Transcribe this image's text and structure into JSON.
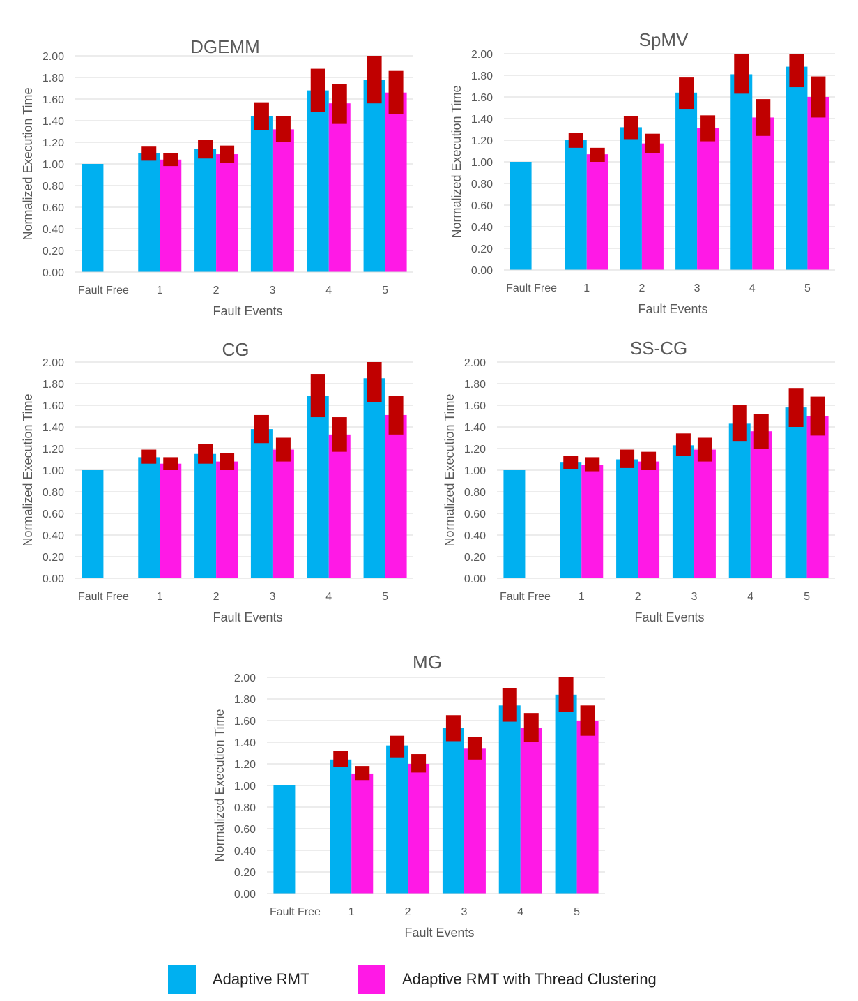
{
  "colors": {
    "adaptive": "#00b0f0",
    "clustering": "#ff19e6",
    "error": "#c00000",
    "grid": "#d9d9d9",
    "text": "#595959"
  },
  "legend": {
    "adaptive_label": "Adaptive RMT",
    "clustering_label": "Adaptive RMT with Thread Clustering"
  },
  "chart_data": [
    {
      "type": "bar",
      "title": "DGEMM",
      "xlabel": "Fault Events",
      "ylabel": "Normalized Execution Time",
      "ylim": [
        0,
        2
      ],
      "yticks": [
        "0.00",
        "0.20",
        "0.40",
        "0.60",
        "0.80",
        "1.00",
        "1.20",
        "1.40",
        "1.60",
        "1.80",
        "2.00"
      ],
      "categories": [
        "Fault Free",
        "1",
        "2",
        "3",
        "4",
        "5"
      ],
      "series": [
        {
          "name": "Adaptive RMT",
          "values": [
            1.0,
            1.1,
            1.14,
            1.44,
            1.68,
            1.78
          ],
          "error_low": [
            null,
            1.03,
            1.05,
            1.31,
            1.48,
            1.56
          ],
          "error_high": [
            null,
            1.16,
            1.22,
            1.57,
            1.88,
            2.0
          ]
        },
        {
          "name": "Adaptive RMT with Thread Clustering",
          "values": [
            null,
            1.04,
            1.09,
            1.32,
            1.56,
            1.66
          ],
          "error_low": [
            null,
            0.98,
            1.01,
            1.2,
            1.37,
            1.46
          ],
          "error_high": [
            null,
            1.1,
            1.17,
            1.44,
            1.74,
            1.86
          ]
        }
      ]
    },
    {
      "type": "bar",
      "title": "SpMV",
      "xlabel": "Fault Events",
      "ylabel": "Normalized Execution Time",
      "ylim": [
        0,
        2
      ],
      "yticks": [
        "0.00",
        "0.20",
        "0.40",
        "0.60",
        "0.80",
        "1.00",
        "1.20",
        "1.40",
        "1.60",
        "1.80",
        "2.00"
      ],
      "categories": [
        "Fault Free",
        "1",
        "2",
        "3",
        "4",
        "5"
      ],
      "series": [
        {
          "name": "Adaptive RMT",
          "values": [
            1.0,
            1.2,
            1.32,
            1.64,
            1.81,
            1.88
          ],
          "error_low": [
            null,
            1.13,
            1.21,
            1.49,
            1.63,
            1.69
          ],
          "error_high": [
            null,
            1.27,
            1.42,
            1.78,
            2.0,
            2.0
          ]
        },
        {
          "name": "Adaptive RMT with Thread Clustering",
          "values": [
            null,
            1.07,
            1.17,
            1.31,
            1.41,
            1.6
          ],
          "error_low": [
            null,
            1.0,
            1.08,
            1.19,
            1.24,
            1.41
          ],
          "error_high": [
            null,
            1.13,
            1.26,
            1.43,
            1.58,
            1.79
          ]
        }
      ]
    },
    {
      "type": "bar",
      "title": "CG",
      "xlabel": "Fault Events",
      "ylabel": "Normalized Execution Time",
      "ylim": [
        0,
        2
      ],
      "yticks": [
        "0.00",
        "0.20",
        "0.40",
        "0.60",
        "0.80",
        "1.00",
        "1.20",
        "1.40",
        "1.60",
        "1.80",
        "2.00"
      ],
      "categories": [
        "Fault Free",
        "1",
        "2",
        "3",
        "4",
        "5"
      ],
      "series": [
        {
          "name": "Adaptive RMT",
          "values": [
            1.0,
            1.12,
            1.15,
            1.38,
            1.69,
            1.85
          ],
          "error_low": [
            null,
            1.06,
            1.06,
            1.25,
            1.49,
            1.63
          ],
          "error_high": [
            null,
            1.19,
            1.24,
            1.51,
            1.89,
            2.0
          ]
        },
        {
          "name": "Adaptive RMT with Thread Clustering",
          "values": [
            null,
            1.06,
            1.08,
            1.19,
            1.33,
            1.51
          ],
          "error_low": [
            null,
            1.0,
            1.0,
            1.08,
            1.17,
            1.33
          ],
          "error_high": [
            null,
            1.12,
            1.16,
            1.3,
            1.49,
            1.69
          ]
        }
      ]
    },
    {
      "type": "bar",
      "title": "SS-CG",
      "xlabel": "Fault Events",
      "ylabel": "Normalized Execution Time",
      "ylim": [
        0,
        2
      ],
      "yticks": [
        "0.00",
        "0.20",
        "0.40",
        "0.60",
        "0.80",
        "1.00",
        "1.20",
        "1.40",
        "1.60",
        "1.80",
        "2.00"
      ],
      "categories": [
        "Fault Free",
        "1",
        "2",
        "3",
        "4",
        "5"
      ],
      "series": [
        {
          "name": "Adaptive RMT",
          "values": [
            1.0,
            1.07,
            1.1,
            1.23,
            1.43,
            1.58
          ],
          "error_low": [
            null,
            1.01,
            1.02,
            1.13,
            1.27,
            1.4
          ],
          "error_high": [
            null,
            1.13,
            1.19,
            1.34,
            1.6,
            1.76
          ]
        },
        {
          "name": "Adaptive RMT with Thread Clustering",
          "values": [
            null,
            1.05,
            1.08,
            1.19,
            1.36,
            1.5
          ],
          "error_low": [
            null,
            0.99,
            1.0,
            1.08,
            1.2,
            1.32
          ],
          "error_high": [
            null,
            1.12,
            1.17,
            1.3,
            1.52,
            1.68
          ]
        }
      ]
    },
    {
      "type": "bar",
      "title": "MG",
      "xlabel": "Fault Events",
      "ylabel": "Normalized Execution Time",
      "ylim": [
        0,
        2
      ],
      "yticks": [
        "0.00",
        "0.20",
        "0.40",
        "0.60",
        "0.80",
        "1.00",
        "1.20",
        "1.40",
        "1.60",
        "1.80",
        "2.00"
      ],
      "categories": [
        "Fault Free",
        "1",
        "2",
        "3",
        "4",
        "5"
      ],
      "series": [
        {
          "name": "Adaptive RMT",
          "values": [
            1.0,
            1.24,
            1.37,
            1.53,
            1.74,
            1.84
          ],
          "error_low": [
            null,
            1.17,
            1.26,
            1.41,
            1.59,
            1.68
          ],
          "error_high": [
            null,
            1.32,
            1.46,
            1.65,
            1.9,
            2.0
          ]
        },
        {
          "name": "Adaptive RMT with Thread Clustering",
          "values": [
            null,
            1.11,
            1.2,
            1.34,
            1.53,
            1.6
          ],
          "error_low": [
            null,
            1.05,
            1.12,
            1.24,
            1.4,
            1.46
          ],
          "error_high": [
            null,
            1.18,
            1.29,
            1.45,
            1.67,
            1.74
          ]
        }
      ]
    }
  ]
}
